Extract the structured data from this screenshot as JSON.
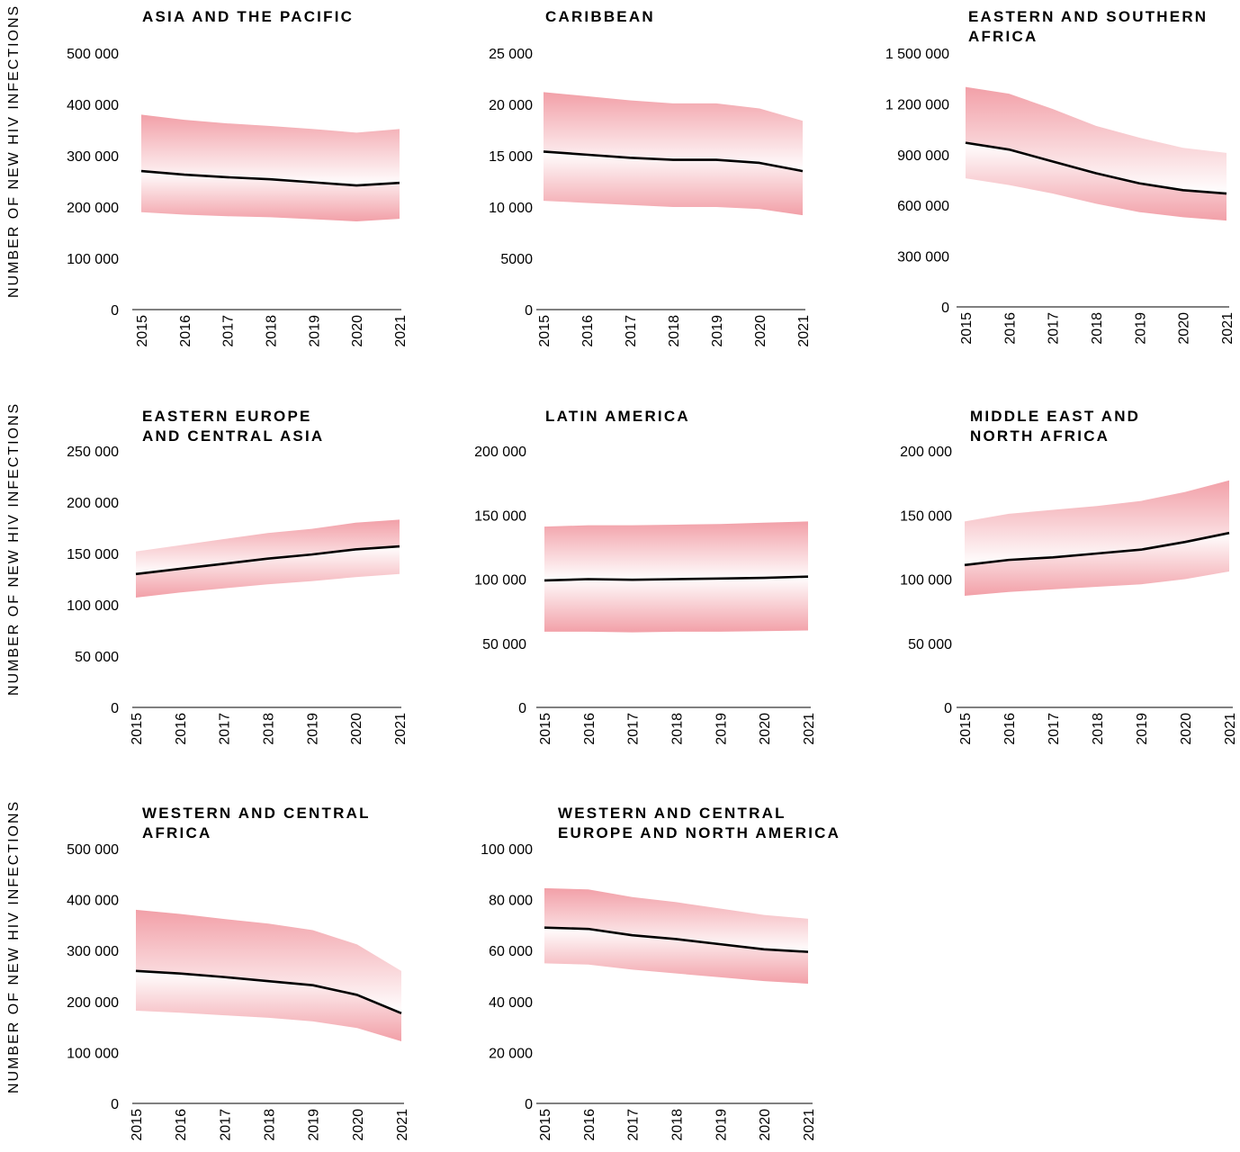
{
  "colors": {
    "band": "#f2a0a8",
    "line": "#000000",
    "axis": "#000000"
  },
  "y_axis_label": "NUMBER OF NEW HIV INFECTIONS",
  "chart_data": [
    {
      "type": "area",
      "title": "ASIA AND THE PACIFIC",
      "x": [
        "2015",
        "2016",
        "2017",
        "2018",
        "2019",
        "2020",
        "2021"
      ],
      "ylim": [
        0,
        500000
      ],
      "yticks": [
        0,
        100000,
        200000,
        300000,
        400000,
        500000
      ],
      "ytick_labels": [
        "0",
        "100 000",
        "200 000",
        "300 000",
        "400 000",
        "500 000"
      ],
      "series": [
        {
          "role": "estimate",
          "values": [
            270000,
            263000,
            258000,
            254000,
            248000,
            242000,
            247000
          ]
        },
        {
          "role": "upper",
          "values": [
            380000,
            370000,
            363000,
            358000,
            352000,
            345000,
            352000
          ]
        },
        {
          "role": "lower",
          "values": [
            190000,
            185000,
            182000,
            180000,
            176000,
            172000,
            177000
          ]
        }
      ]
    },
    {
      "type": "area",
      "title": "CARIBBEAN",
      "x": [
        "2015",
        "2016",
        "2017",
        "2018",
        "2019",
        "2020",
        "2021"
      ],
      "ylim": [
        0,
        25000
      ],
      "yticks": [
        0,
        5000,
        10000,
        15000,
        20000,
        25000
      ],
      "ytick_labels": [
        "0",
        "5000",
        "10 000",
        "15 000",
        "20 000",
        "25 000"
      ],
      "series": [
        {
          "role": "estimate",
          "values": [
            15400,
            15100,
            14800,
            14600,
            14600,
            14300,
            13500
          ]
        },
        {
          "role": "upper",
          "values": [
            21200,
            20800,
            20400,
            20100,
            20100,
            19600,
            18400
          ]
        },
        {
          "role": "lower",
          "values": [
            10600,
            10400,
            10200,
            10000,
            10000,
            9800,
            9200
          ]
        }
      ]
    },
    {
      "type": "area",
      "title": "EASTERN AND SOUTHERN\nAFRICA",
      "x": [
        "2015",
        "2016",
        "2017",
        "2018",
        "2019",
        "2020",
        "2021"
      ],
      "ylim": [
        0,
        1500000
      ],
      "yticks": [
        0,
        300000,
        600000,
        900000,
        1200000,
        1500000
      ],
      "ytick_labels": [
        "0",
        "300 000",
        "600 000",
        "900 000",
        "1 200 000",
        "1 500 000"
      ],
      "series": [
        {
          "role": "estimate",
          "values": [
            970000,
            930000,
            860000,
            790000,
            730000,
            690000,
            670000
          ]
        },
        {
          "role": "upper",
          "values": [
            1300000,
            1260000,
            1170000,
            1070000,
            1000000,
            940000,
            910000
          ]
        },
        {
          "role": "lower",
          "values": [
            760000,
            720000,
            670000,
            610000,
            560000,
            530000,
            510000
          ]
        }
      ]
    },
    {
      "type": "area",
      "title": "EASTERN EUROPE\nAND CENTRAL ASIA",
      "x": [
        "2015",
        "2016",
        "2017",
        "2018",
        "2019",
        "2020",
        "2021"
      ],
      "ylim": [
        0,
        250000
      ],
      "yticks": [
        0,
        50000,
        100000,
        150000,
        200000,
        250000
      ],
      "ytick_labels": [
        "0",
        "50 000",
        "100 000",
        "150 000",
        "200 000",
        "250 000"
      ],
      "series": [
        {
          "role": "estimate",
          "values": [
            130000,
            135000,
            140000,
            145000,
            149000,
            154000,
            157000
          ]
        },
        {
          "role": "upper",
          "values": [
            152000,
            158000,
            164000,
            170000,
            174000,
            180000,
            183000
          ]
        },
        {
          "role": "lower",
          "values": [
            107000,
            112000,
            116000,
            120000,
            123000,
            127000,
            130000
          ]
        }
      ]
    },
    {
      "type": "area",
      "title": "LATIN AMERICA",
      "x": [
        "2015",
        "2016",
        "2017",
        "2018",
        "2019",
        "2020",
        "2021"
      ],
      "ylim": [
        0,
        200000
      ],
      "yticks": [
        0,
        50000,
        100000,
        150000,
        200000
      ],
      "ytick_labels": [
        "0",
        "50 000",
        "100 000",
        "150 000",
        "200 000"
      ],
      "series": [
        {
          "role": "estimate",
          "values": [
            99000,
            100000,
            99500,
            100000,
            100500,
            101000,
            102000
          ]
        },
        {
          "role": "upper",
          "values": [
            141000,
            142000,
            142000,
            142500,
            143000,
            144000,
            145000
          ]
        },
        {
          "role": "lower",
          "values": [
            59000,
            59000,
            58500,
            59000,
            59000,
            59500,
            60000
          ]
        }
      ]
    },
    {
      "type": "area",
      "title": "MIDDLE EAST AND\nNORTH AFRICA",
      "x": [
        "2015",
        "2016",
        "2017",
        "2018",
        "2019",
        "2020",
        "2021"
      ],
      "ylim": [
        0,
        200000
      ],
      "yticks": [
        0,
        50000,
        100000,
        150000,
        200000
      ],
      "ytick_labels": [
        "0",
        "50 000",
        "100 000",
        "150 000",
        "200 000"
      ],
      "series": [
        {
          "role": "estimate",
          "values": [
            111000,
            115000,
            117000,
            120000,
            123000,
            129000,
            136000
          ]
        },
        {
          "role": "upper",
          "values": [
            145000,
            151000,
            154000,
            157000,
            161000,
            168000,
            177000
          ]
        },
        {
          "role": "lower",
          "values": [
            87000,
            90000,
            92000,
            94000,
            96000,
            100000,
            106000
          ]
        }
      ]
    },
    {
      "type": "area",
      "title": "WESTERN AND CENTRAL\nAFRICA",
      "x": [
        "2015",
        "2016",
        "2017",
        "2018",
        "2019",
        "2020",
        "2021"
      ],
      "ylim": [
        0,
        500000
      ],
      "yticks": [
        0,
        100000,
        200000,
        300000,
        400000,
        500000
      ],
      "ytick_labels": [
        "0",
        "100 000",
        "200 000",
        "300 000",
        "400 000",
        "500 000"
      ],
      "series": [
        {
          "role": "estimate",
          "values": [
            260000,
            255000,
            248000,
            240000,
            232000,
            213000,
            177000
          ]
        },
        {
          "role": "upper",
          "values": [
            380000,
            372000,
            362000,
            353000,
            340000,
            312000,
            260000
          ]
        },
        {
          "role": "lower",
          "values": [
            182000,
            178000,
            173000,
            168000,
            161000,
            148000,
            122000
          ]
        }
      ]
    },
    {
      "type": "area",
      "title": "WESTERN AND CENTRAL\nEUROPE AND NORTH AMERICA",
      "x": [
        "2015",
        "2016",
        "2017",
        "2018",
        "2019",
        "2020",
        "2021"
      ],
      "ylim": [
        0,
        100000
      ],
      "yticks": [
        0,
        20000,
        40000,
        60000,
        80000,
        100000
      ],
      "ytick_labels": [
        "0",
        "20 000",
        "40 000",
        "60 000",
        "80 000",
        "100 000"
      ],
      "series": [
        {
          "role": "estimate",
          "values": [
            69000,
            68500,
            66000,
            64500,
            62500,
            60500,
            59500
          ]
        },
        {
          "role": "upper",
          "values": [
            84500,
            84000,
            81000,
            79000,
            76500,
            74000,
            72500
          ]
        },
        {
          "role": "lower",
          "values": [
            55000,
            54500,
            52500,
            51000,
            49500,
            48000,
            47000
          ]
        }
      ]
    }
  ]
}
